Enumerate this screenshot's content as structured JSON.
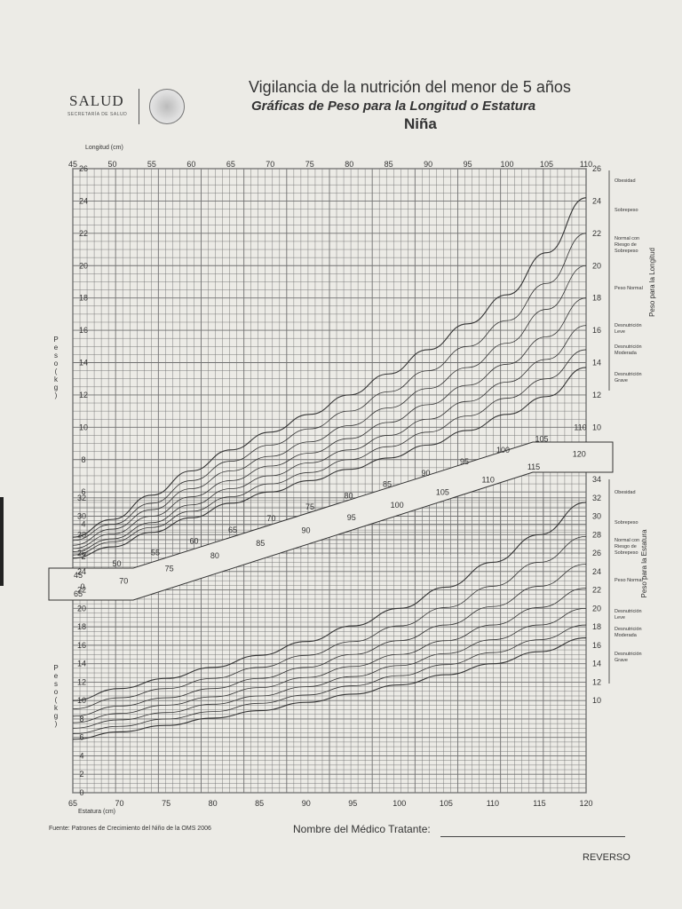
{
  "header": {
    "logo_text": "SALUD",
    "logo_sub": "SECRETARÍA DE SALUD",
    "title_main": "Vigilancia de la nutrición del menor de 5 años",
    "title_sub": "Gráficas de Peso para la Longitud o Estatura",
    "title_sex": "Niña"
  },
  "footer": {
    "source": "Fuente: Patrones de Crecimiento del Niño de la OMS 2006",
    "doctor_label": "Nombre del Médico Tratante:",
    "reverso": "REVERSO"
  },
  "chart_data": [
    {
      "type": "line",
      "title": "Peso para la Longitud",
      "xlabel": "Longitud (cm)",
      "ylabel": "Peso (kg)",
      "xlim": [
        45,
        110
      ],
      "ylim": [
        2,
        26
      ],
      "x_ticks": [
        45,
        50,
        55,
        60,
        65,
        70,
        75,
        80,
        85,
        90,
        95,
        100,
        105,
        110
      ],
      "y_ticks": [
        2,
        4,
        6,
        8,
        10,
        12,
        14,
        16,
        18,
        20,
        22,
        24,
        26
      ],
      "x": [
        45,
        50,
        55,
        60,
        65,
        70,
        75,
        80,
        85,
        90,
        95,
        100,
        105,
        110
      ],
      "series": [
        {
          "name": "Obesidad",
          "values": [
            3.2,
            4.3,
            5.8,
            7.3,
            8.6,
            9.7,
            10.8,
            12.0,
            13.3,
            14.8,
            16.4,
            18.2,
            20.8,
            24.2
          ]
        },
        {
          "name": "Sobrepeso",
          "values": [
            3.0,
            4.0,
            5.3,
            6.7,
            7.9,
            8.9,
            9.9,
            11.0,
            12.2,
            13.5,
            15.0,
            16.6,
            18.9,
            22.0
          ]
        },
        {
          "name": "Normal con Riesgo de Sobrepeso",
          "values": [
            2.7,
            3.7,
            4.9,
            6.2,
            7.3,
            8.2,
            9.1,
            10.1,
            11.2,
            12.4,
            13.7,
            15.2,
            17.3,
            20.0
          ]
        },
        {
          "name": "Peso Normal",
          "values": [
            2.5,
            3.4,
            4.5,
            5.7,
            6.7,
            7.6,
            8.4,
            9.3,
            10.3,
            11.4,
            12.6,
            13.9,
            15.6,
            18.0
          ]
        },
        {
          "name": "Desnutrición Leve",
          "values": [
            2.3,
            3.1,
            4.1,
            5.2,
            6.2,
            7.0,
            7.8,
            8.6,
            9.5,
            10.5,
            11.6,
            12.8,
            14.2,
            16.3
          ]
        },
        {
          "name": "Desnutrición Moderada",
          "values": [
            2.1,
            2.9,
            3.8,
            4.8,
            5.7,
            6.5,
            7.2,
            8.0,
            8.8,
            9.7,
            10.7,
            11.8,
            13.0,
            14.8
          ]
        },
        {
          "name": "Desnutrición Grave",
          "values": [
            1.9,
            2.6,
            3.5,
            4.4,
            5.3,
            6.0,
            6.7,
            7.4,
            8.1,
            8.9,
            9.8,
            10.8,
            11.9,
            13.7
          ]
        }
      ],
      "legend": [
        "Obesidad",
        "Sobrepeso",
        "Normal con Riesgo de Sobrepeso",
        "Peso Normal",
        "Desnutrición Leve",
        "Desnutrición Moderada",
        "Desnutrición Grave"
      ],
      "side_label": "Peso para la Longitud"
    },
    {
      "type": "line",
      "title": "Peso para la Estatura",
      "xlabel": "Estatura (cm)",
      "ylabel": "Peso (kg)",
      "xlim": [
        65,
        120
      ],
      "ylim": [
        0,
        34
      ],
      "x_ticks": [
        65,
        70,
        75,
        80,
        85,
        90,
        95,
        100,
        105,
        110,
        115,
        120
      ],
      "y_ticks": [
        0,
        2,
        4,
        6,
        8,
        10,
        12,
        14,
        16,
        18,
        20,
        22,
        24,
        26,
        28,
        30,
        32,
        34
      ],
      "x": [
        65,
        70,
        75,
        80,
        85,
        90,
        95,
        100,
        105,
        110,
        115,
        120
      ],
      "series": [
        {
          "name": "Obesidad",
          "values": [
            10.0,
            11.3,
            12.4,
            13.6,
            14.9,
            16.4,
            18.1,
            20.0,
            22.3,
            25.0,
            28.0,
            31.5
          ]
        },
        {
          "name": "Sobrepeso",
          "values": [
            9.1,
            10.3,
            11.3,
            12.4,
            13.6,
            14.9,
            16.4,
            18.1,
            20.1,
            22.4,
            25.0,
            27.8
          ]
        },
        {
          "name": "Normal con Riesgo de Sobrepeso",
          "values": [
            8.3,
            9.4,
            10.3,
            11.3,
            12.4,
            13.6,
            15.0,
            16.5,
            18.2,
            20.2,
            22.4,
            24.8
          ]
        },
        {
          "name": "Peso Normal",
          "values": [
            7.6,
            8.6,
            9.5,
            10.4,
            11.4,
            12.5,
            13.7,
            15.0,
            16.5,
            18.2,
            20.1,
            22.2
          ]
        },
        {
          "name": "Desnutrición Leve",
          "values": [
            7.0,
            7.9,
            8.7,
            9.6,
            10.5,
            11.5,
            12.6,
            13.8,
            15.1,
            16.6,
            18.2,
            20.0
          ]
        },
        {
          "name": "Desnutrición Moderada",
          "values": [
            6.4,
            7.2,
            8.0,
            8.8,
            9.7,
            10.6,
            11.6,
            12.7,
            13.9,
            15.2,
            16.6,
            18.2
          ]
        },
        {
          "name": "Desnutrición Grave",
          "values": [
            5.8,
            6.6,
            7.3,
            8.1,
            8.9,
            9.8,
            10.7,
            11.7,
            12.8,
            14.0,
            15.3,
            16.8
          ]
        }
      ],
      "legend": [
        "Obesidad",
        "Sobrepeso",
        "Normal con Riesgo de Sobrepeso",
        "Peso Normal",
        "Desnutrición Leve",
        "Desnutrición Moderada",
        "Desnutrición Grave"
      ],
      "side_label": "Peso para la Estatura"
    }
  ],
  "colors": {
    "grid": "#707070",
    "curve": "#333333",
    "paper": "#ecebe6"
  }
}
